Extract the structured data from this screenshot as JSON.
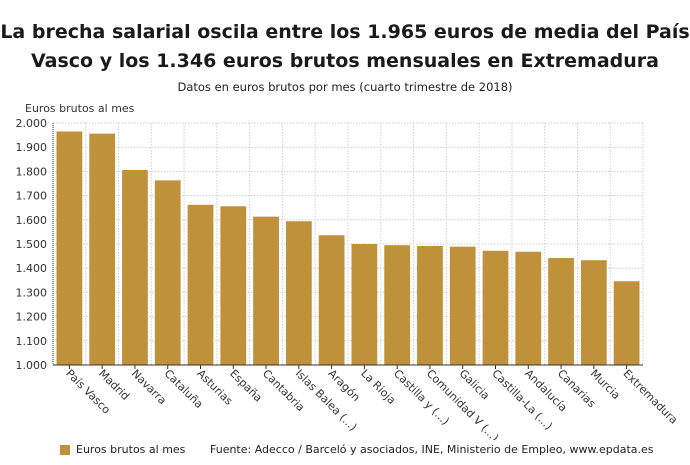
{
  "title_line1": "La brecha salarial oscila entre los 1.965 euros de media del País",
  "title_line2": "Vasco y los 1.346 euros brutos mensuales en Extremadura",
  "subtitle": "Datos en euros brutos por mes (cuarto trimestre de 2018)",
  "source": "Fuente: Adecco / Barceló y asociados, INE, Ministerio de Empleo, www.epdata.es",
  "chart_data": {
    "type": "bar",
    "ylabel": "Euros brutos al mes",
    "ylim": [
      1000,
      2000
    ],
    "yticks": [
      "1.000",
      "1.100",
      "1.200",
      "1.300",
      "1.400",
      "1.500",
      "1.600",
      "1.700",
      "1.800",
      "1.900",
      "2.000"
    ],
    "grid": true,
    "legend_position": "bottom-left",
    "categories": [
      "País Vasco",
      "Madrid",
      "Navarra",
      "Cataluña",
      "Asturias",
      "España",
      "Cantabria",
      "Islas Balea (...)",
      "Aragón",
      "La Rioja",
      "Castilla y (...)",
      "Comunidad V (...)",
      "Galicia",
      "Castilla-La (...)",
      "Andalucía",
      "Canarias",
      "Murcia",
      "Extremadura"
    ],
    "series": [
      {
        "name": "Euros brutos al mes",
        "color": "#bf913a",
        "values": [
          1965,
          1956,
          1806,
          1763,
          1662,
          1656,
          1613,
          1594,
          1536,
          1500,
          1495,
          1492,
          1489,
          1472,
          1468,
          1442,
          1433,
          1346
        ]
      }
    ]
  }
}
